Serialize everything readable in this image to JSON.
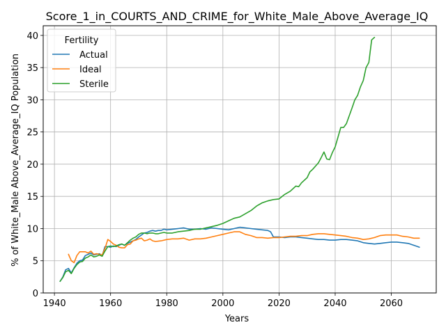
{
  "chart_data": {
    "type": "line",
    "title": "Score_1_in_COURTS_AND_CRIME_for_White_Male_Above_Average_IQ",
    "xlabel": "Years",
    "ylabel": "% of White_Male Above_Average_IQ Population",
    "xlim": [
      1936,
      2076
    ],
    "ylim": [
      0,
      41.5
    ],
    "xticks": [
      1940,
      1960,
      1980,
      2000,
      2020,
      2040,
      2060
    ],
    "yticks": [
      0,
      5,
      10,
      15,
      20,
      25,
      30,
      35,
      40
    ],
    "grid": true,
    "legend": {
      "title": "Fertility",
      "placement": "top-left"
    },
    "series": [
      {
        "name": "Actual",
        "color": "#1f77b4",
        "points": [
          [
            1942,
            1.8
          ],
          [
            1943,
            2.5
          ],
          [
            1944,
            3.6
          ],
          [
            1945,
            3.8
          ],
          [
            1946,
            3.1
          ],
          [
            1947,
            3.9
          ],
          [
            1948,
            4.6
          ],
          [
            1949,
            5.0
          ],
          [
            1950,
            5.1
          ],
          [
            1951,
            5.8
          ],
          [
            1952,
            6.0
          ],
          [
            1953,
            6.2
          ],
          [
            1954,
            5.9
          ],
          [
            1955,
            6.0
          ],
          [
            1956,
            6.1
          ],
          [
            1957,
            5.8
          ],
          [
            1958,
            7.2
          ],
          [
            1959,
            7.2
          ],
          [
            1960,
            7.1
          ],
          [
            1961,
            7.3
          ],
          [
            1962,
            7.2
          ],
          [
            1963,
            7.4
          ],
          [
            1964,
            7.6
          ],
          [
            1965,
            7.4
          ],
          [
            1966,
            7.7
          ],
          [
            1967,
            7.9
          ],
          [
            1968,
            8.1
          ],
          [
            1969,
            8.3
          ],
          [
            1970,
            8.7
          ],
          [
            1971,
            9.0
          ],
          [
            1972,
            9.3
          ],
          [
            1973,
            9.4
          ],
          [
            1974,
            9.6
          ],
          [
            1975,
            9.7
          ],
          [
            1976,
            9.6
          ],
          [
            1977,
            9.7
          ],
          [
            1978,
            9.7
          ],
          [
            1979,
            9.9
          ],
          [
            1980,
            9.8
          ],
          [
            1982,
            9.9
          ],
          [
            1984,
            10.0
          ],
          [
            1986,
            10.1
          ],
          [
            1988,
            9.9
          ],
          [
            1990,
            9.9
          ],
          [
            1992,
            10.0
          ],
          [
            1994,
            9.9
          ],
          [
            1996,
            10.1
          ],
          [
            1998,
            10.0
          ],
          [
            2000,
            9.9
          ],
          [
            2002,
            9.8
          ],
          [
            2004,
            10.0
          ],
          [
            2006,
            10.2
          ],
          [
            2008,
            10.1
          ],
          [
            2010,
            10.0
          ],
          [
            2012,
            9.9
          ],
          [
            2014,
            9.8
          ],
          [
            2016,
            9.7
          ],
          [
            2017,
            9.5
          ],
          [
            2018,
            8.7
          ],
          [
            2020,
            8.7
          ],
          [
            2022,
            8.6
          ],
          [
            2024,
            8.7
          ],
          [
            2026,
            8.7
          ],
          [
            2028,
            8.6
          ],
          [
            2030,
            8.5
          ],
          [
            2032,
            8.4
          ],
          [
            2034,
            8.3
          ],
          [
            2036,
            8.3
          ],
          [
            2038,
            8.2
          ],
          [
            2040,
            8.2
          ],
          [
            2042,
            8.3
          ],
          [
            2044,
            8.3
          ],
          [
            2046,
            8.2
          ],
          [
            2048,
            8.1
          ],
          [
            2050,
            7.8
          ],
          [
            2052,
            7.7
          ],
          [
            2054,
            7.6
          ],
          [
            2056,
            7.7
          ],
          [
            2058,
            7.8
          ],
          [
            2060,
            7.9
          ],
          [
            2062,
            7.9
          ],
          [
            2064,
            7.8
          ],
          [
            2066,
            7.7
          ],
          [
            2068,
            7.4
          ],
          [
            2070,
            7.1
          ]
        ]
      },
      {
        "name": "Ideal",
        "color": "#ff7f0e",
        "points": [
          [
            1945,
            6.0
          ],
          [
            1946,
            5.0
          ],
          [
            1947,
            4.7
          ],
          [
            1948,
            5.8
          ],
          [
            1949,
            6.4
          ],
          [
            1950,
            6.4
          ],
          [
            1951,
            6.4
          ],
          [
            1952,
            6.2
          ],
          [
            1953,
            6.5
          ],
          [
            1954,
            6.0
          ],
          [
            1955,
            6.1
          ],
          [
            1956,
            6.0
          ],
          [
            1957,
            5.9
          ],
          [
            1958,
            6.9
          ],
          [
            1959,
            8.3
          ],
          [
            1960,
            8.0
          ],
          [
            1961,
            7.6
          ],
          [
            1962,
            7.4
          ],
          [
            1963,
            7.1
          ],
          [
            1964,
            7.0
          ],
          [
            1965,
            7.0
          ],
          [
            1966,
            7.5
          ],
          [
            1967,
            7.6
          ],
          [
            1968,
            8.1
          ],
          [
            1969,
            8.2
          ],
          [
            1970,
            8.4
          ],
          [
            1971,
            8.5
          ],
          [
            1972,
            8.1
          ],
          [
            1973,
            8.2
          ],
          [
            1974,
            8.4
          ],
          [
            1975,
            8.1
          ],
          [
            1976,
            8.0
          ],
          [
            1978,
            8.1
          ],
          [
            1980,
            8.3
          ],
          [
            1982,
            8.4
          ],
          [
            1984,
            8.4
          ],
          [
            1986,
            8.5
          ],
          [
            1988,
            8.2
          ],
          [
            1990,
            8.4
          ],
          [
            1992,
            8.4
          ],
          [
            1994,
            8.5
          ],
          [
            1996,
            8.7
          ],
          [
            1998,
            8.9
          ],
          [
            2000,
            9.1
          ],
          [
            2002,
            9.3
          ],
          [
            2004,
            9.5
          ],
          [
            2006,
            9.5
          ],
          [
            2008,
            9.1
          ],
          [
            2010,
            8.9
          ],
          [
            2012,
            8.6
          ],
          [
            2014,
            8.6
          ],
          [
            2016,
            8.5
          ],
          [
            2018,
            8.6
          ],
          [
            2020,
            8.6
          ],
          [
            2022,
            8.7
          ],
          [
            2024,
            8.8
          ],
          [
            2026,
            8.8
          ],
          [
            2028,
            8.9
          ],
          [
            2030,
            8.9
          ],
          [
            2032,
            9.1
          ],
          [
            2034,
            9.2
          ],
          [
            2036,
            9.2
          ],
          [
            2038,
            9.1
          ],
          [
            2040,
            9.0
          ],
          [
            2042,
            8.9
          ],
          [
            2044,
            8.8
          ],
          [
            2046,
            8.6
          ],
          [
            2048,
            8.5
          ],
          [
            2050,
            8.3
          ],
          [
            2052,
            8.4
          ],
          [
            2054,
            8.6
          ],
          [
            2056,
            8.9
          ],
          [
            2058,
            9.0
          ],
          [
            2060,
            9.0
          ],
          [
            2062,
            9.0
          ],
          [
            2064,
            8.8
          ],
          [
            2066,
            8.7
          ],
          [
            2068,
            8.5
          ],
          [
            2070,
            8.5
          ]
        ]
      },
      {
        "name": "Sterile",
        "color": "#2ca02c",
        "points": [
          [
            1942,
            1.8
          ],
          [
            1943,
            2.4
          ],
          [
            1944,
            3.3
          ],
          [
            1945,
            3.5
          ],
          [
            1946,
            3.0
          ],
          [
            1947,
            3.8
          ],
          [
            1948,
            4.4
          ],
          [
            1949,
            4.8
          ],
          [
            1950,
            4.9
          ],
          [
            1951,
            5.4
          ],
          [
            1952,
            5.6
          ],
          [
            1953,
            5.9
          ],
          [
            1954,
            5.6
          ],
          [
            1955,
            5.7
          ],
          [
            1956,
            5.9
          ],
          [
            1957,
            5.7
          ],
          [
            1958,
            6.5
          ],
          [
            1959,
            7.2
          ],
          [
            1960,
            7.3
          ],
          [
            1961,
            7.2
          ],
          [
            1962,
            7.3
          ],
          [
            1963,
            7.5
          ],
          [
            1964,
            7.6
          ],
          [
            1965,
            7.4
          ],
          [
            1966,
            7.8
          ],
          [
            1967,
            8.2
          ],
          [
            1968,
            8.5
          ],
          [
            1969,
            8.7
          ],
          [
            1970,
            9.1
          ],
          [
            1971,
            9.3
          ],
          [
            1972,
            9.3
          ],
          [
            1973,
            9.2
          ],
          [
            1974,
            9.3
          ],
          [
            1975,
            9.3
          ],
          [
            1976,
            9.2
          ],
          [
            1977,
            9.2
          ],
          [
            1978,
            9.3
          ],
          [
            1979,
            9.4
          ],
          [
            1980,
            9.3
          ],
          [
            1982,
            9.3
          ],
          [
            1984,
            9.5
          ],
          [
            1986,
            9.6
          ],
          [
            1988,
            9.7
          ],
          [
            1990,
            9.9
          ],
          [
            1992,
            9.9
          ],
          [
            1994,
            10.1
          ],
          [
            1996,
            10.3
          ],
          [
            1998,
            10.5
          ],
          [
            2000,
            10.8
          ],
          [
            2002,
            11.2
          ],
          [
            2004,
            11.6
          ],
          [
            2006,
            11.8
          ],
          [
            2008,
            12.3
          ],
          [
            2010,
            12.8
          ],
          [
            2012,
            13.5
          ],
          [
            2014,
            14.0
          ],
          [
            2016,
            14.3
          ],
          [
            2018,
            14.5
          ],
          [
            2020,
            14.6
          ],
          [
            2022,
            15.3
          ],
          [
            2024,
            15.8
          ],
          [
            2026,
            16.6
          ],
          [
            2027,
            16.5
          ],
          [
            2028,
            17.1
          ],
          [
            2030,
            17.9
          ],
          [
            2031,
            18.8
          ],
          [
            2032,
            19.2
          ],
          [
            2034,
            20.2
          ],
          [
            2035,
            21.0
          ],
          [
            2036,
            21.9
          ],
          [
            2037,
            20.8
          ],
          [
            2038,
            20.7
          ],
          [
            2039,
            21.8
          ],
          [
            2040,
            22.7
          ],
          [
            2041,
            24.2
          ],
          [
            2042,
            25.7
          ],
          [
            2043,
            25.7
          ],
          [
            2044,
            26.3
          ],
          [
            2045,
            27.5
          ],
          [
            2046,
            28.7
          ],
          [
            2047,
            30.0
          ],
          [
            2048,
            30.7
          ],
          [
            2049,
            32.0
          ],
          [
            2050,
            33.0
          ],
          [
            2051,
            35.0
          ],
          [
            2052,
            35.8
          ],
          [
            2053,
            39.3
          ],
          [
            2054,
            39.7
          ]
        ]
      }
    ]
  }
}
